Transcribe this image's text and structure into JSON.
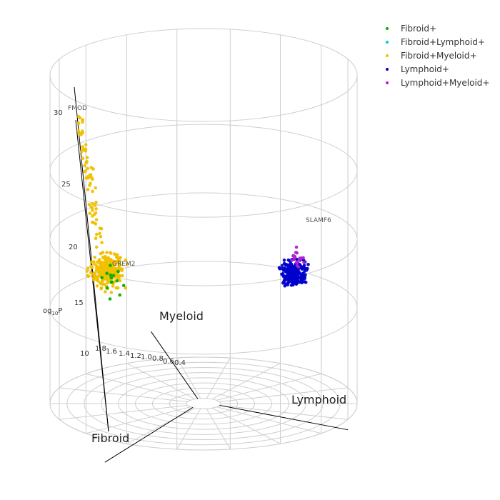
{
  "chart_data": {
    "type": "scatter",
    "projection": "polar-3d",
    "title": "",
    "axes": {
      "vertical": {
        "label_prefix": "og",
        "label_sub": "10",
        "label_suffix": "P",
        "ticks": [
          "10",
          "15",
          "20",
          "25",
          "30"
        ],
        "range": [
          8,
          32
        ]
      },
      "radial": {
        "ticks": [
          "1.8",
          "1.6",
          "1.4",
          "1.2",
          "1.0",
          "0.8",
          "0.6",
          "0.4"
        ],
        "range": [
          0.2,
          2.0
        ]
      },
      "angular": [
        "Myeloid",
        "Lymphoid",
        "Fibroid"
      ]
    },
    "legend": {
      "position": "top-right",
      "items": [
        {
          "name": "Fibroid+",
          "color": "#00b000"
        },
        {
          "name": "Fibroid+Lymphoid+",
          "color": "#00c8e0"
        },
        {
          "name": "Fibroid+Myeloid+",
          "color": "#f0c000"
        },
        {
          "name": "Lymphoid+",
          "color": "#0000cc"
        },
        {
          "name": "Lymphoid+Myeloid+",
          "color": "#b020d0"
        }
      ]
    },
    "annotations": [
      {
        "label": "FMOD",
        "series": "Fibroid+Myeloid+",
        "x_approx": 1.8,
        "y": 30.5
      },
      {
        "label": "GREM2",
        "series": "Fibroid+Myeloid+",
        "x_approx": 1.5,
        "y": 17.5
      },
      {
        "label": "SLAMF6",
        "series": "Lymphoid+",
        "x_approx": 1.3,
        "y": 21
      }
    ],
    "clusters": [
      {
        "series": "Fibroid+Myeloid+",
        "angle_deg": 150,
        "radius_range": [
          1.2,
          1.9
        ],
        "y_range": [
          15,
          31
        ],
        "count": 320
      },
      {
        "series": "Fibroid+",
        "angle_deg": 150,
        "radius_range": [
          1.3,
          1.8
        ],
        "y_range": [
          15,
          21
        ],
        "count": 14
      },
      {
        "series": "Lymphoid+",
        "angle_deg": 25,
        "radius_range": [
          1.0,
          1.6
        ],
        "y_range": [
          15.5,
          22
        ],
        "count": 230
      },
      {
        "series": "Lymphoid+Myeloid+",
        "angle_deg": 25,
        "radius_range": [
          1.1,
          1.5
        ],
        "y_range": [
          16,
          21.5
        ],
        "count": 18
      }
    ],
    "grid": true
  }
}
